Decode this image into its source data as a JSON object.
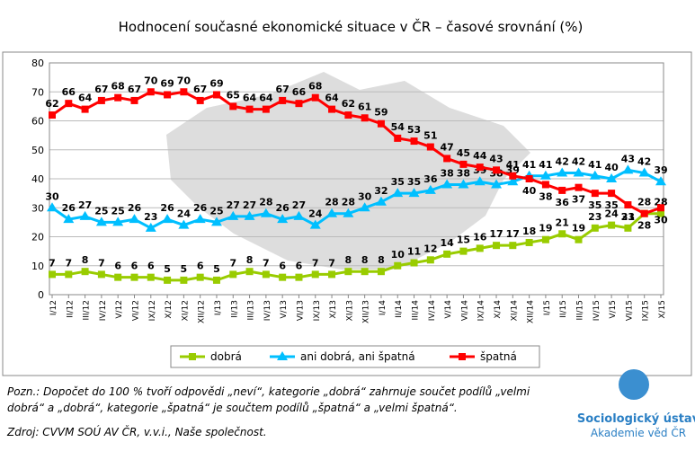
{
  "chart_data": {
    "type": "line",
    "title": "Hodnocení současné ekonomické situace v ČR – časové srovnání (%)",
    "categories": [
      "I/12",
      "II/12",
      "III/12",
      "IV/12",
      "V/12",
      "VI/12",
      "IX/12",
      "X/12",
      "XI/12",
      "XII/12",
      "I/13",
      "II/13",
      "III/13",
      "IV/13",
      "V/13",
      "VI/13",
      "IX/13",
      "X/13",
      "XI/13",
      "XII/13",
      "I/14",
      "II/14",
      "III/14",
      "IV/14",
      "V/14",
      "VI/14",
      "IX/14",
      "X/14",
      "XI/14",
      "XII/14",
      "I/15",
      "II/15",
      "III/15",
      "IV/15",
      "V/15",
      "VI/15",
      "IX/15",
      "X/15"
    ],
    "series": [
      {
        "name": "dobrá",
        "color": "#99cc00",
        "marker": "square",
        "values": [
          7,
          7,
          8,
          7,
          6,
          6,
          6,
          5,
          5,
          6,
          5,
          7,
          8,
          7,
          6,
          6,
          7,
          7,
          8,
          8,
          8,
          10,
          11,
          12,
          14,
          15,
          16,
          17,
          17,
          18,
          19,
          21,
          19,
          23,
          24,
          23,
          28,
          28
        ]
      },
      {
        "name": "ani dobrá, ani špatná",
        "color": "#00bfff",
        "marker": "triangle",
        "values": [
          30,
          26,
          27,
          25,
          25,
          26,
          23,
          26,
          24,
          26,
          25,
          27,
          27,
          28,
          26,
          27,
          24,
          28,
          28,
          30,
          32,
          35,
          35,
          36,
          38,
          38,
          39,
          38,
          39,
          41,
          41,
          42,
          42,
          41,
          40,
          43,
          42,
          39
        ]
      },
      {
        "name": "špatná",
        "color": "#ff0000",
        "marker": "square",
        "values": [
          62,
          66,
          64,
          67,
          68,
          67,
          70,
          69,
          70,
          67,
          69,
          65,
          64,
          64,
          67,
          66,
          68,
          64,
          62,
          61,
          59,
          54,
          53,
          51,
          47,
          45,
          44,
          43,
          41,
          40,
          38,
          36,
          37,
          35,
          35,
          31,
          28,
          30
        ]
      }
    ],
    "ylim": [
      0,
      80
    ],
    "yticks": [
      0,
      10,
      20,
      30,
      40,
      50,
      60,
      70,
      80
    ],
    "grid": true,
    "note": [
      "Pozn.: Dopočet do 100 % tvoří odpovědi „neví“, kategorie „dobrá“ zahrnuje součet podílů „velmi",
      "dobrá“ a „dobrá“, kategorie „špatná“ je součtem podílů „špatná“ a „velmi špatná“."
    ],
    "source": "Zdroj: CVVM SOÚ AV ČR, v.v.i., Naše společnost.",
    "logo": [
      "Sociologický ústav",
      "Akademie věd ČR"
    ]
  }
}
